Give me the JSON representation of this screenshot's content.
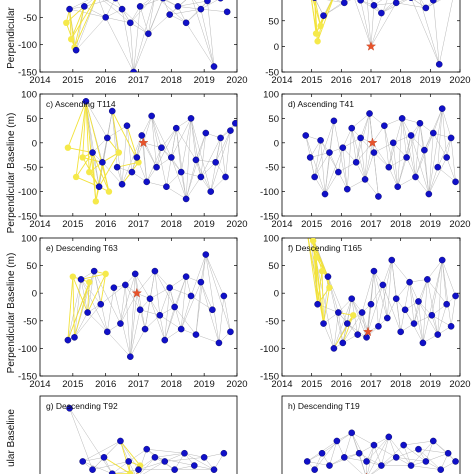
{
  "figure": {
    "ylabel": "Perpendicular Baseline (m)",
    "ylabel_top_fragment": "Perpendicular",
    "ylabel_bottom_fragment": "ular Baseline"
  },
  "chart_data": [
    {
      "type": "scatter",
      "title": "",
      "ylim": [
        -150,
        0
      ],
      "xlim": [
        2014,
        2020
      ],
      "yticks": [
        -50,
        -100,
        -150
      ],
      "xticks": [
        2014,
        2015,
        2016,
        2017,
        2018,
        2019,
        2020
      ],
      "points": [
        [
          2014.9,
          -35
        ],
        [
          2015.1,
          -110
        ],
        [
          2015.35,
          -30
        ],
        [
          2015.75,
          -10
        ],
        [
          2016.0,
          -50
        ],
        [
          2016.3,
          -15
        ],
        [
          2016.5,
          -35
        ],
        [
          2016.75,
          -60
        ],
        [
          2016.85,
          -150
        ],
        [
          2017.05,
          -30
        ],
        [
          2017.3,
          -80
        ],
        [
          2017.5,
          -10
        ],
        [
          2017.75,
          -15
        ],
        [
          2017.95,
          -45
        ],
        [
          2018.2,
          -30
        ],
        [
          2018.45,
          -60
        ],
        [
          2018.6,
          -10
        ],
        [
          2018.9,
          -35
        ],
        [
          2019.1,
          -20
        ],
        [
          2019.3,
          -140
        ],
        [
          2019.5,
          -15
        ],
        [
          2019.7,
          -40
        ]
      ],
      "reference": [],
      "yellow_points": [
        [
          2014.95,
          -90
        ],
        [
          2015.05,
          -105
        ],
        [
          2014.8,
          -60
        ]
      ]
    },
    {
      "type": "scatter",
      "title": "",
      "ylim": [
        -50,
        110
      ],
      "xlim": [
        2014,
        2020
      ],
      "yticks": [
        100,
        50,
        0,
        -50
      ],
      "xticks": [
        2014,
        2015,
        2016,
        2017,
        2018,
        2019,
        2020
      ],
      "points": [
        [
          2014.95,
          110
        ],
        [
          2015.1,
          95
        ],
        [
          2015.4,
          60
        ],
        [
          2015.8,
          105
        ],
        [
          2016.1,
          85
        ],
        [
          2016.4,
          100
        ],
        [
          2016.65,
          90
        ],
        [
          2016.85,
          105
        ],
        [
          2017.1,
          80
        ],
        [
          2017.35,
          65
        ],
        [
          2017.6,
          100
        ],
        [
          2017.85,
          85
        ],
        [
          2018.1,
          105
        ],
        [
          2018.35,
          95
        ],
        [
          2018.6,
          100
        ],
        [
          2018.85,
          75
        ],
        [
          2019.1,
          90
        ],
        [
          2019.3,
          -35
        ],
        [
          2019.55,
          100
        ],
        [
          2019.8,
          105
        ]
      ],
      "reference": [
        2017.0,
        0
      ],
      "yellow_points": [
        [
          2015.3,
          40
        ],
        [
          2015.15,
          25
        ],
        [
          2015.2,
          10
        ]
      ]
    },
    {
      "type": "scatter",
      "title": "c) Ascending T114",
      "ylim": [
        -150,
        100
      ],
      "xlim": [
        2014,
        2020
      ],
      "yticks": [
        100,
        50,
        0,
        -50,
        -100,
        -150
      ],
      "xticks": [
        2014,
        2015,
        2016,
        2017,
        2018,
        2019,
        2020
      ],
      "points": [
        [
          2015.4,
          85
        ],
        [
          2015.6,
          -20
        ],
        [
          2015.8,
          -90
        ],
        [
          2015.9,
          -40
        ],
        [
          2016.05,
          10
        ],
        [
          2016.2,
          65
        ],
        [
          2016.35,
          -50
        ],
        [
          2016.5,
          -85
        ],
        [
          2016.65,
          35
        ],
        [
          2016.8,
          -60
        ],
        [
          2016.95,
          -30
        ],
        [
          2017.1,
          15
        ],
        [
          2017.25,
          -80
        ],
        [
          2017.4,
          55
        ],
        [
          2017.55,
          -50
        ],
        [
          2017.7,
          -10
        ],
        [
          2017.85,
          -90
        ],
        [
          2018.0,
          -30
        ],
        [
          2018.15,
          30
        ],
        [
          2018.3,
          -60
        ],
        [
          2018.45,
          -115
        ],
        [
          2018.6,
          50
        ],
        [
          2018.75,
          -35
        ],
        [
          2018.9,
          -70
        ],
        [
          2019.05,
          20
        ],
        [
          2019.2,
          -100
        ],
        [
          2019.35,
          -40
        ],
        [
          2019.5,
          10
        ],
        [
          2019.65,
          -70
        ],
        [
          2019.8,
          25
        ],
        [
          2019.95,
          40
        ]
      ],
      "reference": [
        2017.15,
        0
      ],
      "yellow_points": [
        [
          2014.85,
          -10
        ],
        [
          2015.1,
          -70
        ],
        [
          2015.3,
          -30
        ],
        [
          2015.5,
          -60
        ],
        [
          2015.7,
          -120
        ],
        [
          2016.1,
          -100
        ],
        [
          2016.4,
          -20
        ],
        [
          2017.0,
          -40
        ]
      ]
    },
    {
      "type": "scatter",
      "title": "d) Ascending T41",
      "ylim": [
        -150,
        100
      ],
      "xlim": [
        2014,
        2020
      ],
      "yticks": [
        100,
        50,
        0,
        -50,
        -100,
        -150
      ],
      "xticks": [
        2014,
        2015,
        2016,
        2017,
        2018,
        2019,
        2020
      ],
      "points": [
        [
          2014.8,
          15
        ],
        [
          2014.95,
          -30
        ],
        [
          2015.1,
          -70
        ],
        [
          2015.3,
          5
        ],
        [
          2015.45,
          -105
        ],
        [
          2015.6,
          -20
        ],
        [
          2015.75,
          45
        ],
        [
          2015.9,
          -60
        ],
        [
          2016.05,
          -10
        ],
        [
          2016.2,
          -95
        ],
        [
          2016.35,
          30
        ],
        [
          2016.5,
          -40
        ],
        [
          2016.65,
          10
        ],
        [
          2016.8,
          -75
        ],
        [
          2016.95,
          60
        ],
        [
          2017.1,
          -20
        ],
        [
          2017.25,
          -110
        ],
        [
          2017.45,
          35
        ],
        [
          2017.6,
          -50
        ],
        [
          2017.75,
          0
        ],
        [
          2017.9,
          -90
        ],
        [
          2018.05,
          50
        ],
        [
          2018.2,
          -30
        ],
        [
          2018.35,
          15
        ],
        [
          2018.5,
          -70
        ],
        [
          2018.65,
          40
        ],
        [
          2018.8,
          -15
        ],
        [
          2018.95,
          -105
        ],
        [
          2019.1,
          20
        ],
        [
          2019.25,
          -50
        ],
        [
          2019.4,
          70
        ],
        [
          2019.55,
          -30
        ],
        [
          2019.7,
          10
        ],
        [
          2019.85,
          -80
        ]
      ],
      "reference": [
        2017.05,
        0
      ],
      "yellow_points": []
    },
    {
      "type": "scatter",
      "title": "e) Descending T63",
      "ylim": [
        -150,
        100
      ],
      "xlim": [
        2014,
        2020
      ],
      "yticks": [
        100,
        50,
        0,
        -50,
        -100,
        -150
      ],
      "xticks": [
        2014,
        2015,
        2016,
        2017,
        2018,
        2019,
        2020
      ],
      "points": [
        [
          2014.85,
          -85
        ],
        [
          2015.05,
          -80
        ],
        [
          2015.25,
          25
        ],
        [
          2015.45,
          -35
        ],
        [
          2015.65,
          40
        ],
        [
          2015.85,
          -20
        ],
        [
          2016.05,
          -70
        ],
        [
          2016.25,
          10
        ],
        [
          2016.45,
          -55
        ],
        [
          2016.6,
          15
        ],
        [
          2016.75,
          -115
        ],
        [
          2016.9,
          35
        ],
        [
          2017.05,
          -30
        ],
        [
          2017.2,
          -65
        ],
        [
          2017.35,
          -10
        ],
        [
          2017.5,
          40
        ],
        [
          2017.65,
          -40
        ],
        [
          2017.8,
          -85
        ],
        [
          2017.95,
          10
        ],
        [
          2018.1,
          -25
        ],
        [
          2018.3,
          -65
        ],
        [
          2018.45,
          30
        ],
        [
          2018.6,
          -5
        ],
        [
          2018.75,
          -75
        ],
        [
          2018.9,
          20
        ],
        [
          2019.05,
          70
        ],
        [
          2019.25,
          -30
        ],
        [
          2019.45,
          -90
        ],
        [
          2019.6,
          -5
        ],
        [
          2019.8,
          -70
        ]
      ],
      "reference": [
        2016.95,
        0
      ],
      "yellow_points": [
        [
          2015.0,
          30
        ],
        [
          2015.5,
          20
        ],
        [
          2016.0,
          35
        ]
      ]
    },
    {
      "type": "scatter",
      "title": "f) Descending T165",
      "ylim": [
        -150,
        100
      ],
      "xlim": [
        2014,
        2020
      ],
      "yticks": [
        100,
        50,
        0,
        -50,
        -100,
        -150
      ],
      "xticks": [
        2014,
        2015,
        2016,
        2017,
        2018,
        2019,
        2020
      ],
      "points": [
        [
          2014.95,
          115
        ],
        [
          2015.2,
          -20
        ],
        [
          2015.4,
          -55
        ],
        [
          2015.55,
          30
        ],
        [
          2015.75,
          -100
        ],
        [
          2015.9,
          -35
        ],
        [
          2016.05,
          -90
        ],
        [
          2016.2,
          -55
        ],
        [
          2016.35,
          -10
        ],
        [
          2016.55,
          -75
        ],
        [
          2016.7,
          -35
        ],
        [
          2016.85,
          -80
        ],
        [
          2017.0,
          -20
        ],
        [
          2017.1,
          40
        ],
        [
          2017.25,
          -60
        ],
        [
          2017.4,
          15
        ],
        [
          2017.55,
          -45
        ],
        [
          2017.7,
          60
        ],
        [
          2017.85,
          -10
        ],
        [
          2018.0,
          -70
        ],
        [
          2018.15,
          -30
        ],
        [
          2018.3,
          20
        ],
        [
          2018.45,
          -55
        ],
        [
          2018.6,
          -15
        ],
        [
          2018.75,
          -90
        ],
        [
          2018.9,
          25
        ],
        [
          2019.05,
          -40
        ],
        [
          2019.25,
          -75
        ],
        [
          2019.4,
          60
        ],
        [
          2019.55,
          -20
        ],
        [
          2019.7,
          -60
        ],
        [
          2019.85,
          -5
        ]
      ],
      "reference": [
        2016.9,
        -70
      ],
      "yellow_points": [
        [
          2014.85,
          110
        ],
        [
          2015.05,
          95
        ],
        [
          2015.1,
          80
        ],
        [
          2015.15,
          65
        ],
        [
          2015.35,
          40
        ],
        [
          2015.6,
          10
        ],
        [
          2016.4,
          -40
        ]
      ]
    },
    {
      "type": "scatter",
      "title": "g) Descending T92",
      "ylim": [
        -10,
        100
      ],
      "xlim": [
        2014,
        2020
      ],
      "yticks": [
        0
      ],
      "xticks": [],
      "points": [
        [
          2014.9,
          85
        ],
        [
          2015.3,
          20
        ],
        [
          2015.6,
          10
        ],
        [
          2015.95,
          25
        ],
        [
          2016.2,
          5
        ],
        [
          2016.45,
          45
        ],
        [
          2016.7,
          20
        ],
        [
          2017.0,
          10
        ],
        [
          2017.25,
          35
        ],
        [
          2017.5,
          25
        ],
        [
          2017.8,
          20
        ],
        [
          2018.1,
          10
        ],
        [
          2018.4,
          30
        ],
        [
          2018.7,
          15
        ],
        [
          2019.0,
          25
        ],
        [
          2019.3,
          10
        ],
        [
          2019.6,
          30
        ]
      ],
      "reference": [
        2016.95,
        0
      ],
      "yellow_points": [
        [
          2016.75,
          5
        ],
        [
          2017.05,
          15
        ]
      ]
    },
    {
      "type": "scatter",
      "title": "h) Descending T19",
      "ylim": [
        -10,
        100
      ],
      "xlim": [
        2014,
        2020
      ],
      "yticks": [
        0
      ],
      "xticks": [],
      "points": [
        [
          2014.85,
          20
        ],
        [
          2015.1,
          10
        ],
        [
          2015.35,
          30
        ],
        [
          2015.6,
          15
        ],
        [
          2015.85,
          45
        ],
        [
          2016.1,
          25
        ],
        [
          2016.35,
          55
        ],
        [
          2016.6,
          30
        ],
        [
          2016.85,
          20
        ],
        [
          2017.1,
          40
        ],
        [
          2017.35,
          15
        ],
        [
          2017.6,
          50
        ],
        [
          2017.85,
          25
        ],
        [
          2018.1,
          40
        ],
        [
          2018.35,
          15
        ],
        [
          2018.6,
          35
        ],
        [
          2018.85,
          20
        ],
        [
          2019.1,
          45
        ],
        [
          2019.35,
          10
        ],
        [
          2019.6,
          30
        ],
        [
          2019.85,
          20
        ]
      ],
      "reference": [
        2016.85,
        0
      ],
      "yellow_points": []
    }
  ]
}
